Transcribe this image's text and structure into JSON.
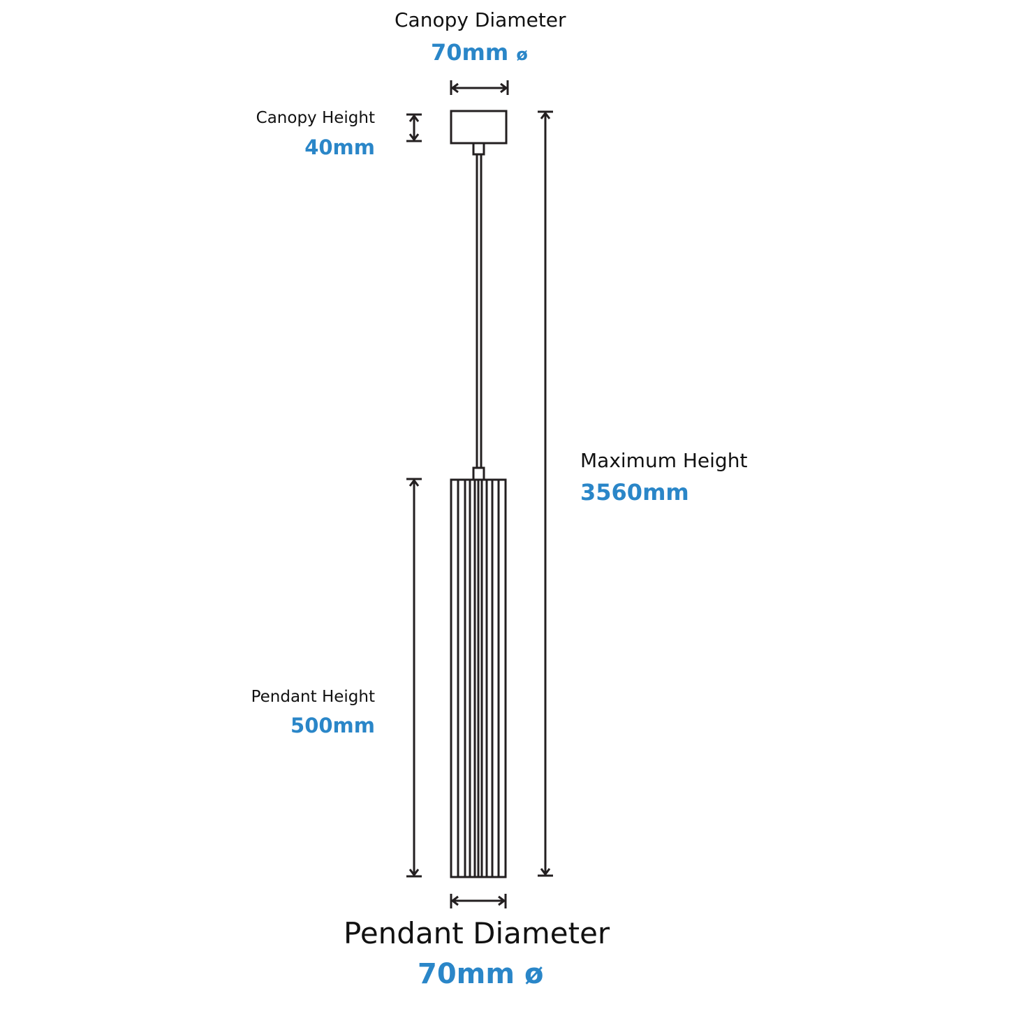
{
  "labels": {
    "canopy_diameter": {
      "label": "Canopy Diameter",
      "value": "70mm",
      "symbol": "ø"
    },
    "canopy_height": {
      "label": "Canopy Height",
      "value": "40mm"
    },
    "maximum_height": {
      "label": "Maximum Height",
      "value": "3560mm"
    },
    "pendant_height": {
      "label": "Pendant Height",
      "value": "500mm"
    },
    "pendant_diameter": {
      "label": "Pendant Diameter",
      "value": "70mm",
      "symbol": "ø"
    }
  },
  "colors": {
    "accent": "#2a86c8",
    "line": "#231f20"
  }
}
